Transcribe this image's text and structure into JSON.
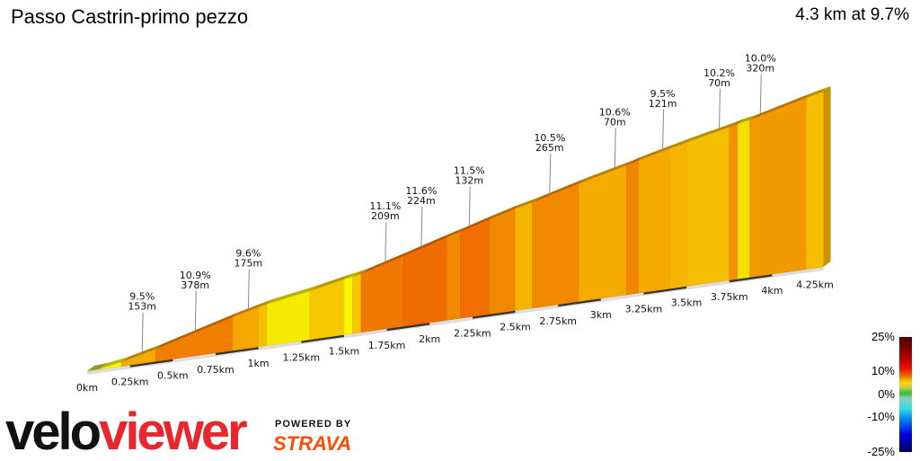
{
  "header": {
    "title": "Passo Castrin-primo pezzo",
    "summary": "4.3 km at 9.7%"
  },
  "chart_data": {
    "type": "area",
    "title": "Passo Castrin-primo pezzo",
    "xlabel": "",
    "ylabel": "",
    "x_unit": "km",
    "xlim": [
      0,
      4.3
    ],
    "x_ticks": [
      "0km",
      "0.25km",
      "0.5km",
      "0.75km",
      "1km",
      "1.25km",
      "1.5km",
      "1.75km",
      "2km",
      "2.25km",
      "2.5km",
      "2.75km",
      "3km",
      "3.25km",
      "3.5km",
      "3.75km",
      "4km",
      "4.25km"
    ],
    "segments": [
      {
        "start": 0,
        "end": 0.08,
        "grade": 3
      },
      {
        "start": 0.08,
        "end": 0.2,
        "grade": 6
      },
      {
        "start": 0.2,
        "end": 0.4,
        "grade": 9.5
      },
      {
        "start": 0.4,
        "end": 0.85,
        "grade": 10.9
      },
      {
        "start": 0.85,
        "end": 1.0,
        "grade": 9.6
      },
      {
        "start": 1.0,
        "end": 1.05,
        "grade": 8.5
      },
      {
        "start": 1.05,
        "end": 1.3,
        "grade": 6.5
      },
      {
        "start": 1.3,
        "end": 1.5,
        "grade": 8
      },
      {
        "start": 1.5,
        "end": 1.55,
        "grade": 6
      },
      {
        "start": 1.55,
        "end": 1.6,
        "grade": 8
      },
      {
        "start": 1.6,
        "end": 1.85,
        "grade": 11.1
      },
      {
        "start": 1.85,
        "end": 2.1,
        "grade": 11.6
      },
      {
        "start": 2.1,
        "end": 2.18,
        "grade": 10.5
      },
      {
        "start": 2.18,
        "end": 2.35,
        "grade": 11.5
      },
      {
        "start": 2.35,
        "end": 2.5,
        "grade": 10.5
      },
      {
        "start": 2.5,
        "end": 2.6,
        "grade": 9
      },
      {
        "start": 2.6,
        "end": 2.87,
        "grade": 10.5
      },
      {
        "start": 2.87,
        "end": 3.15,
        "grade": 9.5
      },
      {
        "start": 3.15,
        "end": 3.22,
        "grade": 10.6
      },
      {
        "start": 3.22,
        "end": 3.4,
        "grade": 9.5
      },
      {
        "start": 3.4,
        "end": 3.5,
        "grade": 9
      },
      {
        "start": 3.5,
        "end": 3.75,
        "grade": 8.5
      },
      {
        "start": 3.75,
        "end": 3.8,
        "grade": 10.2
      },
      {
        "start": 3.8,
        "end": 3.87,
        "grade": 7
      },
      {
        "start": 3.87,
        "end": 4.2,
        "grade": 10
      },
      {
        "start": 4.2,
        "end": 4.3,
        "grade": 8.5
      }
    ],
    "annotations": [
      {
        "km": 0.3,
        "grade": "9.5%",
        "length": "153m"
      },
      {
        "km": 0.61,
        "grade": "10.9%",
        "length": "378m"
      },
      {
        "km": 0.92,
        "grade": "9.6%",
        "length": "175m"
      },
      {
        "km": 1.72,
        "grade": "11.1%",
        "length": "209m"
      },
      {
        "km": 1.93,
        "grade": "11.6%",
        "length": "224m"
      },
      {
        "km": 2.21,
        "grade": "11.5%",
        "length": "132m"
      },
      {
        "km": 2.68,
        "grade": "10.5%",
        "length": "265m"
      },
      {
        "km": 3.06,
        "grade": "10.6%",
        "length": "70m"
      },
      {
        "km": 3.34,
        "grade": "9.5%",
        "length": "121m"
      },
      {
        "km": 3.67,
        "grade": "10.2%",
        "length": "70m"
      },
      {
        "km": 3.91,
        "grade": "10.0%",
        "length": "320m"
      }
    ],
    "legend": {
      "labels": [
        "25%",
        "10%",
        "0%",
        "-10%",
        "-25%"
      ]
    }
  },
  "branding": {
    "logo_a": "velo",
    "logo_b": "viewer",
    "powered_by": "POWERED BY",
    "strava": "STRAVA"
  }
}
